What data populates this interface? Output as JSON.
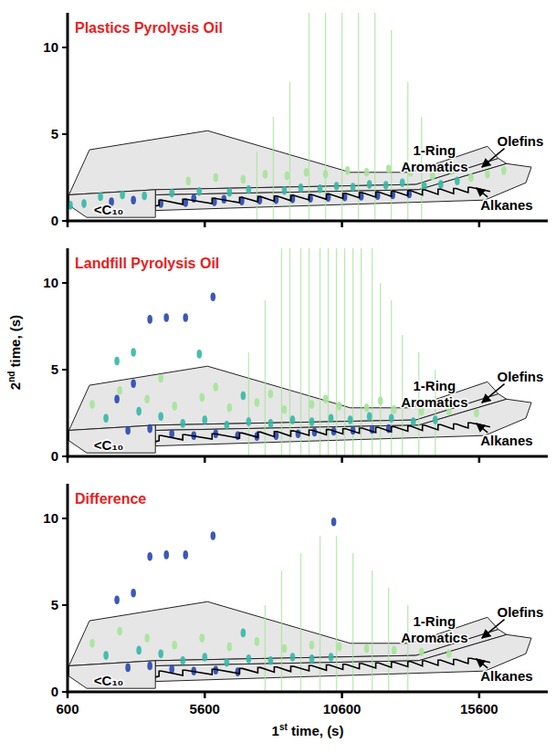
{
  "chart_data": {
    "type": "gcxgc",
    "x_label": "1st time, (s)",
    "y_label": "2nd time, (s)",
    "xlim": [
      600,
      18100
    ],
    "ylim": [
      0,
      12
    ],
    "xticks": [
      600,
      5600,
      10600,
      15600
    ],
    "yticks": [
      0,
      5,
      10
    ],
    "colors": [
      "#a6e39a",
      "#35b7a5",
      "#2846b0"
    ],
    "regions": [
      {
        "label": "1-Ring Aromatics",
        "x": [
          650,
          1400,
          5700,
          10900,
          13100,
          15900,
          16300,
          13300,
          3800
        ],
        "y": [
          1.5,
          4.1,
          5.2,
          2.8,
          2.8,
          4.3,
          3.6,
          2.1,
          1.8
        ],
        "label_x": 13970,
        "label_y": 3.6
      },
      {
        "label": "Olefins",
        "x": [
          3800,
          13300,
          16300,
          16600,
          13400,
          3800
        ],
        "y": [
          1.8,
          2.1,
          3.6,
          3.3,
          1.8,
          1.5
        ],
        "label_x": 17100,
        "label_y": 4.6,
        "arrow_x": 15700,
        "arrow_y": 3.1
      },
      {
        "label": "Alkanes",
        "x": [
          3800,
          13400,
          16600,
          17500,
          17300,
          15800,
          3800
        ],
        "y": [
          1.5,
          1.8,
          3.3,
          3.1,
          2.2,
          1.2,
          0.6
        ],
        "label_x": 16600,
        "label_y": 0.9,
        "arrow_x": 15500,
        "arrow_y": 1.9
      },
      {
        "label": "<C₁₀",
        "x": [
          650,
          3800,
          3800,
          1300,
          650
        ],
        "y": [
          1.5,
          1.8,
          0.2,
          0.2,
          0.9
        ],
        "label_x": 2100,
        "label_y": 0.65
      }
    ],
    "ladder": {
      "x": [
        3800,
        3933,
        3933,
        4033,
        4800,
        4800,
        4900,
        5867,
        5867,
        5967,
        6867,
        6867,
        6967,
        7533,
        7533,
        7633,
        8133,
        8133,
        8233,
        8733,
        8733,
        8833,
        9400,
        9400,
        9500,
        10033,
        10033,
        10133,
        10633,
        10633,
        10733,
        11233,
        11233,
        11333,
        11833,
        11833,
        11933,
        12400,
        12400,
        12500,
        13000,
        13000,
        13100,
        13533,
        13533,
        13633,
        14100,
        14100,
        14200,
        14667,
        14667,
        14767,
        15200,
        15200,
        15300,
        16000
      ],
      "y": [
        0.85,
        0.9,
        1.2,
        1.2,
        0.95,
        1.25,
        1.25,
        1.0,
        1.3,
        1.3,
        1.05,
        1.35,
        1.35,
        1.1,
        1.4,
        1.4,
        1.13,
        1.43,
        1.43,
        1.17,
        1.47,
        1.47,
        1.21,
        1.51,
        1.51,
        1.25,
        1.55,
        1.55,
        1.29,
        1.59,
        1.59,
        1.33,
        1.63,
        1.63,
        1.37,
        1.67,
        1.67,
        1.41,
        1.71,
        1.71,
        1.45,
        1.75,
        1.75,
        1.49,
        1.79,
        1.79,
        1.53,
        1.83,
        1.83,
        1.57,
        1.87,
        1.87,
        1.63,
        1.93,
        1.93,
        1.7
      ]
    },
    "panels": [
      {
        "title": "Plastics Pyrolysis Oil",
        "spots": {
          "x": [
            4000,
            4900,
            5950,
            6950,
            7600,
            8200,
            8800,
            9450,
            10100,
            10700,
            11300,
            11900,
            12450,
            13050,
            2200,
            3000,
            5200,
            6300,
            4400,
            5400,
            6500,
            7200,
            8500,
            9100,
            9800,
            10400,
            11000,
            11600,
            12200,
            12800,
            13600,
            14200,
            14800,
            1800,
            2600,
            3400,
            5000,
            6000,
            7000,
            7800,
            8600,
            9300,
            10000,
            10800,
            11500,
            12300,
            13100,
            13900,
            14600,
            15300,
            15900,
            700,
            1200,
            16500
          ],
          "y": [
            1.0,
            1.05,
            1.1,
            1.15,
            1.2,
            1.22,
            1.27,
            1.3,
            1.35,
            1.38,
            1.42,
            1.46,
            1.5,
            1.55,
            1.1,
            1.2,
            1.3,
            1.25,
            1.6,
            1.7,
            1.65,
            1.8,
            1.75,
            1.9,
            1.85,
            2.0,
            1.95,
            2.1,
            2.05,
            2.2,
            2.0,
            2.1,
            2.3,
            1.4,
            1.5,
            1.45,
            2.3,
            2.5,
            2.4,
            2.7,
            2.6,
            2.8,
            2.7,
            2.9,
            2.8,
            3.0,
            2.8,
            2.6,
            2.9,
            2.5,
            2.7,
            0.9,
            1.0,
            2.9
          ],
          "intensity": [
            3,
            3,
            3,
            3,
            3,
            3,
            3,
            3,
            3,
            3,
            3,
            3,
            3,
            3,
            3,
            3,
            3,
            3,
            2,
            2,
            2,
            2,
            2,
            2,
            2,
            2,
            2,
            2,
            2,
            2,
            2,
            2,
            2,
            2,
            2,
            2,
            1,
            1,
            1,
            1,
            1,
            1,
            1,
            1,
            1,
            1,
            1,
            1,
            1,
            1,
            1,
            2,
            2,
            1
          ]
        },
        "streaks": {
          "x": [
            7500,
            8100,
            8700,
            9400,
            10000,
            10600,
            11200,
            11800,
            12400,
            13000,
            13500
          ],
          "top": [
            4,
            6,
            8,
            12,
            12,
            12,
            12,
            12,
            11,
            8,
            6
          ]
        }
      },
      {
        "title": "Landfill Pyrolysis Oil",
        "spots": {
          "x": [
            2800,
            3600,
            4400,
            5200,
            6000,
            6800,
            7500,
            8200,
            9000,
            9600,
            10300,
            11000,
            11700,
            12300,
            3600,
            4200,
            4900,
            5900,
            2400,
            3000,
            2000,
            3200,
            4000,
            4800,
            5600,
            6400,
            7200,
            8000,
            8800,
            9500,
            10200,
            10900,
            11600,
            12400,
            13200,
            14000,
            2400,
            3000,
            5400,
            7000,
            1500,
            2500,
            3500,
            4500,
            5500,
            6500,
            7500,
            8500,
            9500,
            10500,
            11500,
            12500,
            13500,
            14500,
            15500,
            4000,
            6000,
            8000,
            10000,
            12000
          ],
          "y": [
            1.5,
            1.6,
            1.3,
            1.2,
            1.3,
            1.2,
            1.15,
            1.2,
            1.3,
            1.4,
            1.45,
            1.5,
            1.55,
            1.6,
            7.9,
            8.0,
            8.0,
            9.2,
            3.3,
            4.2,
            2.2,
            2.6,
            2.3,
            1.9,
            2.1,
            1.8,
            2.0,
            1.9,
            2.1,
            2.0,
            2.2,
            2.1,
            2.3,
            2.2,
            2.0,
            2.1,
            5.5,
            6.0,
            5.9,
            3.5,
            3.0,
            3.8,
            3.3,
            2.9,
            3.4,
            2.8,
            3.1,
            2.7,
            3.0,
            2.9,
            2.8,
            2.7,
            2.6,
            2.6,
            2.5,
            4.5,
            4.0,
            3.6,
            3.3,
            3.2
          ],
          "intensity": [
            3,
            3,
            3,
            3,
            3,
            3,
            3,
            3,
            3,
            3,
            3,
            3,
            3,
            3,
            3,
            3,
            3,
            3,
            3,
            3,
            2,
            2,
            2,
            2,
            2,
            2,
            2,
            2,
            2,
            2,
            2,
            2,
            2,
            2,
            2,
            2,
            2,
            2,
            2,
            2,
            1,
            1,
            1,
            1,
            1,
            1,
            1,
            1,
            1,
            1,
            1,
            1,
            1,
            1,
            1,
            1,
            1,
            1,
            1,
            1
          ]
        },
        "streaks": {
          "x": [
            7200,
            7800,
            8400,
            8700,
            9100,
            9400,
            9800,
            10100,
            10400,
            10700,
            11000,
            11300,
            11700,
            12000,
            12400,
            12800,
            13400,
            14000
          ],
          "top": [
            6,
            9,
            12,
            12,
            12,
            12,
            12,
            12,
            12,
            12,
            12,
            12,
            12,
            10,
            9,
            7,
            6,
            5
          ]
        }
      },
      {
        "title": "Difference",
        "spots": {
          "x": [
            2800,
            3600,
            4400,
            5200,
            6000,
            6800,
            3600,
            4200,
            4900,
            5900,
            2400,
            3000,
            10300,
            2000,
            3200,
            4000,
            4800,
            5600,
            6400,
            7200,
            8000,
            8800,
            9500,
            10200,
            7000,
            1500,
            2500,
            3500,
            4500,
            5500,
            6500,
            7500,
            8500,
            9500,
            10500,
            11500,
            12500,
            13500,
            14500
          ],
          "y": [
            1.4,
            1.5,
            1.3,
            1.2,
            1.25,
            1.15,
            7.8,
            7.9,
            7.9,
            9.0,
            5.3,
            5.7,
            9.8,
            2.1,
            2.4,
            2.2,
            1.8,
            2.0,
            1.7,
            1.9,
            1.8,
            2.0,
            1.9,
            2.0,
            3.4,
            2.8,
            3.5,
            3.1,
            2.7,
            3.1,
            2.6,
            2.9,
            2.5,
            2.7,
            2.6,
            2.5,
            2.4,
            2.3,
            2.2
          ],
          "intensity": [
            3,
            3,
            3,
            3,
            3,
            3,
            3,
            3,
            3,
            3,
            3,
            3,
            3,
            2,
            2,
            2,
            2,
            2,
            2,
            2,
            2,
            2,
            2,
            2,
            2,
            1,
            1,
            1,
            1,
            1,
            1,
            1,
            1,
            1,
            1,
            1,
            1,
            1,
            1
          ]
        },
        "streaks": {
          "x": [
            7800,
            8400,
            9100,
            9800,
            10400,
            11000,
            11700,
            12300,
            13000
          ],
          "top": [
            5,
            7,
            8,
            9,
            9,
            8,
            7,
            6,
            5
          ]
        }
      }
    ]
  }
}
